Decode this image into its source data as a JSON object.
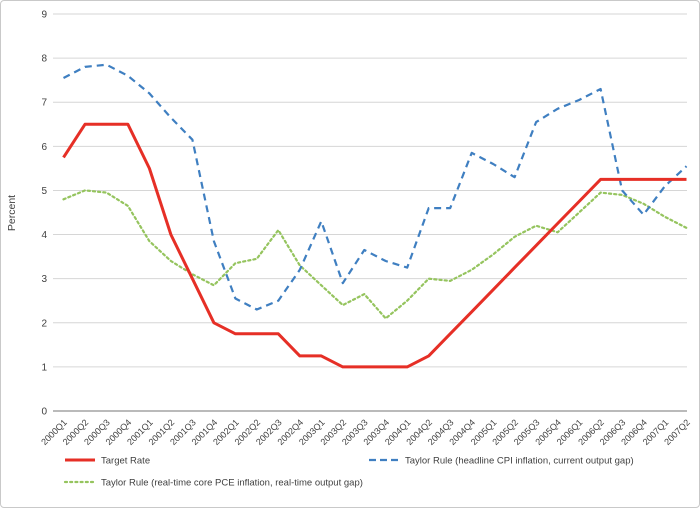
{
  "chart_data": {
    "type": "line",
    "title": "",
    "xlabel": "",
    "ylabel": "Percent",
    "ylim": [
      0,
      9
    ],
    "yticks": [
      0,
      1,
      2,
      3,
      4,
      5,
      6,
      7,
      8,
      9
    ],
    "grid": "horizontal",
    "legend_position": "bottom",
    "categories": [
      "2000Q1",
      "2000Q2",
      "2000Q3",
      "2000Q4",
      "2001Q1",
      "2001Q2",
      "2001Q3",
      "2001Q4",
      "2002Q1",
      "2002Q2",
      "2002Q3",
      "2002Q4",
      "2003Q1",
      "2003Q2",
      "2003Q3",
      "2003Q4",
      "2004Q1",
      "2004Q2",
      "2004Q3",
      "2004Q4",
      "2005Q1",
      "2005Q2",
      "2005Q3",
      "2005Q4",
      "2006Q1",
      "2006Q2",
      "2006Q3",
      "2006Q4",
      "2007Q1",
      "2007Q2"
    ],
    "series": [
      {
        "name": "Target Rate",
        "key": "target-rate",
        "color": "#e62f26",
        "line_style": "solid",
        "values": [
          5.75,
          6.5,
          6.5,
          6.5,
          5.5,
          4.0,
          3.0,
          2.0,
          1.75,
          1.75,
          1.75,
          1.25,
          1.25,
          1.0,
          1.0,
          1.0,
          1.0,
          1.25,
          1.75,
          2.25,
          2.75,
          3.25,
          3.75,
          4.25,
          4.75,
          5.25,
          5.25,
          5.25,
          5.25,
          5.25
        ]
      },
      {
        "name": "Taylor Rule (headline CPI inflation, current output gap)",
        "key": "taylor-cpi",
        "color": "#3f7fc1",
        "line_style": "dashed",
        "values": [
          7.55,
          7.8,
          7.85,
          7.6,
          7.2,
          6.65,
          6.15,
          3.85,
          2.55,
          2.3,
          2.5,
          3.2,
          4.3,
          2.9,
          3.65,
          3.4,
          3.25,
          4.6,
          4.6,
          5.85,
          5.6,
          5.3,
          6.55,
          6.85,
          7.05,
          7.3,
          5.0,
          4.45,
          5.1,
          5.55
        ]
      },
      {
        "name": "Taylor Rule (real-time core PCE inflation, real-time output gap)",
        "key": "taylor-pce",
        "color": "#95c45e",
        "line_style": "dotted",
        "values": [
          4.8,
          5.0,
          4.95,
          4.65,
          3.85,
          3.4,
          3.1,
          2.85,
          3.35,
          3.45,
          4.1,
          3.3,
          2.85,
          2.4,
          2.65,
          2.1,
          2.5,
          3.0,
          2.95,
          3.2,
          3.55,
          3.95,
          4.2,
          4.05,
          4.5,
          4.95,
          4.9,
          4.7,
          4.4,
          4.15
        ]
      }
    ]
  }
}
